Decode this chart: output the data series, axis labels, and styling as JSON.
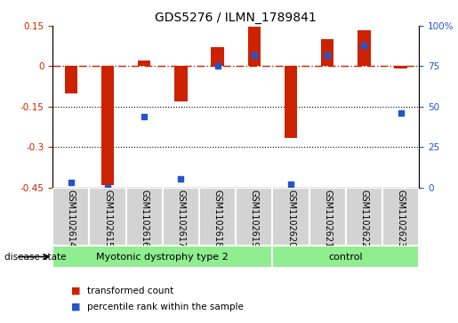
{
  "title": "GDS5276 / ILMN_1789841",
  "samples": [
    "GSM1102614",
    "GSM1102615",
    "GSM1102616",
    "GSM1102617",
    "GSM1102618",
    "GSM1102619",
    "GSM1102620",
    "GSM1102621",
    "GSM1102622",
    "GSM1102623"
  ],
  "transformed_count": [
    -0.1,
    -0.44,
    0.02,
    -0.13,
    0.07,
    0.148,
    -0.265,
    0.1,
    0.135,
    -0.01
  ],
  "percentile_rank": [
    3,
    0,
    44,
    5,
    75,
    82,
    2,
    82,
    88,
    46
  ],
  "ylim_left": [
    -0.45,
    0.15
  ],
  "ylim_right": [
    0,
    100
  ],
  "yticks_left": [
    0.15,
    0.0,
    -0.15,
    -0.3,
    -0.45
  ],
  "yticks_right": [
    100,
    75,
    50,
    25,
    0
  ],
  "groups": [
    {
      "label": "Myotonic dystrophy type 2",
      "start": 0,
      "end": 6,
      "color": "#90EE90"
    },
    {
      "label": "control",
      "start": 6,
      "end": 10,
      "color": "#90EE90"
    }
  ],
  "bar_color": "#CC2200",
  "dot_color": "#2255CC",
  "hline_y": 0.0,
  "dotted_lines": [
    -0.15,
    -0.3
  ],
  "legend_bar_label": "transformed count",
  "legend_dot_label": "percentile rank within the sample",
  "disease_state_label": "disease state",
  "sample_box_color": "#D3D3D3",
  "bar_width": 0.35,
  "label_fontsize": 7,
  "group_fontsize": 8,
  "tick_fontsize": 7.5,
  "title_fontsize": 10
}
